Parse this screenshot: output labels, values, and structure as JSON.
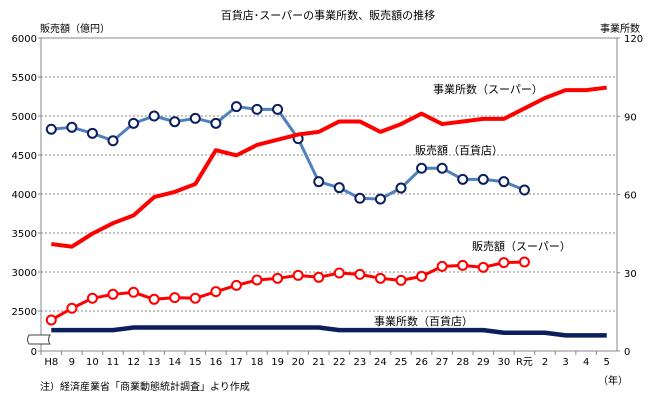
{
  "chart_data": {
    "type": "line",
    "title": "百貨店･スーパーの事業所数、販売額の推移",
    "ylabel_left": "販売額（億円）",
    "ylabel_right": "事業所数",
    "xlabel": "（年）",
    "note": "注）経済産業省「商業動態統計調査」より作成",
    "categories": [
      "H8",
      "9",
      "10",
      "11",
      "12",
      "13",
      "14",
      "15",
      "16",
      "17",
      "18",
      "19",
      "20",
      "21",
      "22",
      "23",
      "24",
      "25",
      "26",
      "27",
      "28",
      "29",
      "30",
      "R元",
      "2",
      "3",
      "4",
      "5"
    ],
    "y_left": {
      "ticks": [
        "0",
        "2500",
        "3000",
        "3500",
        "4000",
        "4500",
        "5000",
        "5500",
        "6000"
      ],
      "range": [
        2500,
        6000
      ],
      "axis_break": true
    },
    "y_right": {
      "ticks": [
        "0",
        "30",
        "60",
        "90",
        "120"
      ],
      "range": [
        0,
        120
      ]
    },
    "grid": true,
    "series": [
      {
        "name": "販売額（百貨店）",
        "axis": "left",
        "color": "#4f81bd",
        "marker": "circle",
        "values": [
          4830,
          4855,
          4778,
          4683,
          4906,
          5000,
          4927,
          4970,
          4906,
          5120,
          5085,
          5085,
          4710,
          4158,
          4081,
          3945,
          3935,
          4077,
          4330,
          4330,
          4188,
          4188,
          4158,
          4051,
          null,
          null,
          null,
          null
        ]
      },
      {
        "name": "事業所数（スーパー）",
        "axis": "right",
        "color": "#ff0000",
        "marker": "none",
        "values": [
          41,
          40,
          45,
          49,
          52,
          59,
          61,
          64,
          77,
          75,
          79,
          81,
          83,
          84,
          88,
          88,
          84,
          87,
          91,
          87,
          88,
          89,
          89,
          93,
          97,
          100,
          100,
          101
        ]
      },
      {
        "name": "販売額（スーパー）",
        "axis": "left",
        "color": "#ff0000",
        "marker": "circle",
        "values": [
          2385,
          2535,
          2663,
          2714,
          2740,
          2650,
          2671,
          2663,
          2748,
          2829,
          2897,
          2919,
          2957,
          2932,
          2987,
          2970,
          2919,
          2893,
          2944,
          3072,
          3085,
          3060,
          3120,
          3128,
          null,
          null,
          null,
          null
        ]
      },
      {
        "name": "事業所数（百貨店）",
        "axis": "right",
        "color": "#0b1f5c",
        "marker": "none",
        "values": [
          8,
          8,
          8,
          8,
          9,
          9,
          9,
          9,
          9,
          9,
          9,
          9,
          9,
          9,
          8,
          8,
          8,
          8,
          8,
          8,
          8,
          8,
          7,
          7,
          7,
          6,
          6,
          6
        ]
      }
    ]
  }
}
